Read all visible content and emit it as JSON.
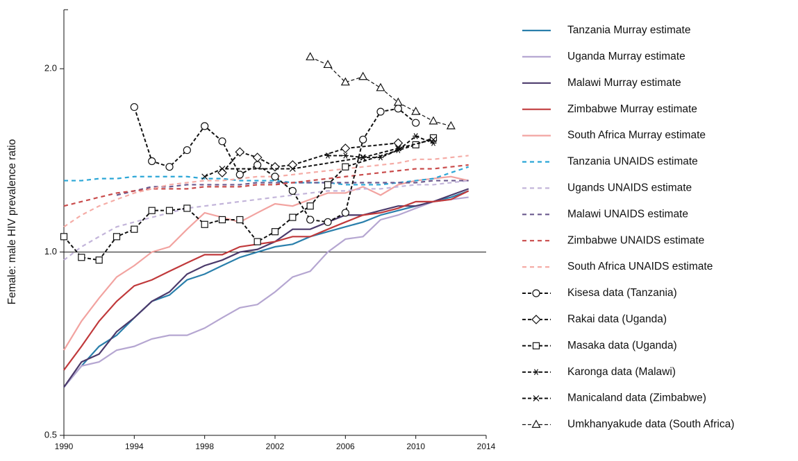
{
  "chart_data": {
    "type": "line",
    "y_label": "Female: male HIV prevalence ratio",
    "log_scale": true,
    "xlim": [
      1990,
      2014
    ],
    "xticks": [
      1990,
      1994,
      1998,
      2002,
      2006,
      2010,
      2014
    ],
    "ylim": [
      0.5,
      2.5
    ],
    "yticks": [
      0.5,
      {
        "value": 1,
        "label": "1.0"
      },
      {
        "value": 2,
        "label": "2.0"
      }
    ],
    "reference_line": 1,
    "legend": "right",
    "x": [
      1990,
      1991,
      1992,
      1993,
      1994,
      1995,
      1996,
      1997,
      1998,
      1999,
      2000,
      2001,
      2002,
      2003,
      2004,
      2005,
      2006,
      2007,
      2008,
      2009,
      2010,
      2011,
      2012,
      2013
    ],
    "series": [
      {
        "name": "Tanzania Murray estimate",
        "color": "#2a7fab",
        "dash": "solid",
        "values": [
          0.6,
          0.65,
          0.7,
          0.73,
          0.78,
          0.83,
          0.85,
          0.9,
          0.92,
          0.95,
          0.98,
          1.0,
          1.02,
          1.03,
          1.06,
          1.08,
          1.1,
          1.12,
          1.15,
          1.17,
          1.19,
          1.21,
          1.23,
          1.26
        ]
      },
      {
        "name": "Uganda Murray estimate",
        "color": "#b5a6d1",
        "dash": "solid",
        "values": [
          0.6,
          0.65,
          0.66,
          0.69,
          0.7,
          0.72,
          0.73,
          0.73,
          0.75,
          0.78,
          0.81,
          0.82,
          0.86,
          0.91,
          0.93,
          1.0,
          1.05,
          1.06,
          1.13,
          1.15,
          1.18,
          1.21,
          1.22,
          1.23
        ]
      },
      {
        "name": "Malawi Murray estimate",
        "color": "#4b3a6b",
        "dash": "solid",
        "values": [
          0.6,
          0.66,
          0.68,
          0.74,
          0.78,
          0.83,
          0.86,
          0.92,
          0.95,
          0.97,
          1.0,
          1.01,
          1.04,
          1.09,
          1.09,
          1.12,
          1.15,
          1.15,
          1.17,
          1.19,
          1.19,
          1.21,
          1.24,
          1.27
        ]
      },
      {
        "name": "Zimbabwe Murray estimate",
        "color": "#c0393b",
        "dash": "solid",
        "values": [
          0.64,
          0.7,
          0.77,
          0.83,
          0.88,
          0.9,
          0.93,
          0.96,
          0.99,
          0.99,
          1.02,
          1.03,
          1.04,
          1.06,
          1.06,
          1.09,
          1.12,
          1.15,
          1.16,
          1.18,
          1.21,
          1.21,
          1.22,
          1.26
        ]
      },
      {
        "name": "South Africa Murray estimate",
        "color": "#f2a3a0",
        "dash": "solid",
        "values": [
          0.69,
          0.77,
          0.84,
          0.91,
          0.95,
          1.0,
          1.02,
          1.09,
          1.16,
          1.14,
          1.12,
          1.16,
          1.2,
          1.19,
          1.22,
          1.25,
          1.25,
          1.28,
          1.24,
          1.29,
          1.31,
          1.32,
          1.33,
          1.31
        ]
      },
      {
        "name": "Tanzania UNAIDS estimate",
        "color": "#2ba6d6",
        "dash": "dashed",
        "values": [
          1.31,
          1.31,
          1.32,
          1.32,
          1.33,
          1.33,
          1.33,
          1.33,
          1.32,
          1.32,
          1.31,
          1.31,
          1.31,
          1.3,
          1.3,
          1.3,
          1.29,
          1.29,
          1.29,
          1.3,
          1.31,
          1.32,
          1.35,
          1.38
        ]
      },
      {
        "name": "Ugands UNAIDS estimate",
        "color": "#c3b5da",
        "dash": "dashed",
        "values": [
          0.97,
          1.02,
          1.06,
          1.1,
          1.12,
          1.14,
          1.16,
          1.18,
          1.19,
          1.2,
          1.21,
          1.22,
          1.23,
          1.24,
          1.25,
          1.26,
          1.26,
          1.27,
          1.27,
          1.28,
          1.29,
          1.29,
          1.3,
          1.31
        ]
      },
      {
        "name": "Malawi UNAIDS estimate",
        "color": "#6b5a8e",
        "dash": "dashed",
        "x": [
          1993,
          1994,
          1995,
          1996,
          1997,
          1998,
          1999,
          2000,
          2001,
          2002,
          2003,
          2004,
          2005,
          2006,
          2007,
          2008,
          2009,
          2010,
          2011,
          2012,
          2013
        ],
        "values": [
          1.24,
          1.26,
          1.28,
          1.28,
          1.29,
          1.29,
          1.29,
          1.29,
          1.3,
          1.3,
          1.3,
          1.3,
          1.3,
          1.3,
          1.3,
          1.3,
          1.3,
          1.3,
          1.31,
          1.31,
          1.31
        ]
      },
      {
        "name": "Zimbabwe UNAIDS estimate",
        "color": "#c94b4b",
        "dash": "dashed",
        "values": [
          1.19,
          1.21,
          1.23,
          1.25,
          1.26,
          1.27,
          1.27,
          1.27,
          1.28,
          1.28,
          1.28,
          1.29,
          1.29,
          1.3,
          1.31,
          1.32,
          1.33,
          1.34,
          1.35,
          1.36,
          1.37,
          1.37,
          1.38,
          1.39
        ]
      },
      {
        "name": "South Africa UNAIDS estimate",
        "color": "#f5aca6",
        "dash": "dashed",
        "values": [
          1.1,
          1.15,
          1.19,
          1.22,
          1.25,
          1.27,
          1.29,
          1.3,
          1.31,
          1.31,
          1.32,
          1.33,
          1.33,
          1.34,
          1.35,
          1.36,
          1.37,
          1.38,
          1.39,
          1.4,
          1.42,
          1.42,
          1.43,
          1.44
        ]
      },
      {
        "name": "Kisesa data (Tanzania)",
        "color": "#111111",
        "dash": "data",
        "marker": "circle",
        "x": [
          1994,
          1995,
          1996,
          1997,
          1998,
          1999,
          2000,
          2001,
          2002,
          2003,
          2004,
          2005,
          2006,
          2007,
          2008,
          2009,
          2010
        ],
        "values": [
          1.73,
          1.41,
          1.38,
          1.47,
          1.61,
          1.52,
          1.34,
          1.39,
          1.33,
          1.26,
          1.13,
          1.12,
          1.16,
          1.53,
          1.7,
          1.72,
          1.63
        ]
      },
      {
        "name": "Rakai data (Uganda)",
        "color": "#111111",
        "dash": "data",
        "marker": "diamond",
        "x": [
          1999,
          2000,
          2001,
          2002,
          2003,
          2006,
          2009
        ],
        "values": [
          1.35,
          1.46,
          1.43,
          1.38,
          1.39,
          1.48,
          1.51
        ]
      },
      {
        "name": "Masaka data (Uganda)",
        "color": "#111111",
        "dash": "data",
        "marker": "square",
        "x": [
          1990,
          1991,
          1992,
          1993,
          1994,
          1995,
          1996,
          1997,
          1998,
          1999,
          2000,
          2001,
          2002,
          2003,
          2004,
          2005,
          2006,
          2010,
          2011
        ],
        "values": [
          1.06,
          0.98,
          0.97,
          1.06,
          1.09,
          1.17,
          1.17,
          1.18,
          1.11,
          1.13,
          1.13,
          1.04,
          1.08,
          1.14,
          1.19,
          1.29,
          1.38,
          1.5,
          1.54
        ]
      },
      {
        "name": "Karonga data (Malawi)",
        "color": "#111111",
        "dash": "data",
        "marker": "asterisk",
        "x": [
          2005,
          2006,
          2007,
          2008,
          2009,
          2010,
          2011
        ],
        "values": [
          1.44,
          1.44,
          1.43,
          1.43,
          1.47,
          1.55,
          1.51
        ]
      },
      {
        "name": "Manicaland data (Zimbabwe)",
        "color": "#111111",
        "dash": "data",
        "marker": "x",
        "x": [
          1998,
          1999,
          2003,
          2007,
          2009,
          2011
        ],
        "values": [
          1.33,
          1.37,
          1.37,
          1.43,
          1.48,
          1.53
        ]
      },
      {
        "name": "Umkhanyakude data (South Africa)",
        "color": "#111111",
        "dash": "thin",
        "marker": "triangle",
        "x": [
          2004,
          2005,
          2006,
          2007,
          2008,
          2009,
          2010,
          2011,
          2012
        ],
        "values": [
          2.09,
          2.03,
          1.9,
          1.94,
          1.86,
          1.76,
          1.7,
          1.64,
          1.61
        ]
      }
    ]
  }
}
